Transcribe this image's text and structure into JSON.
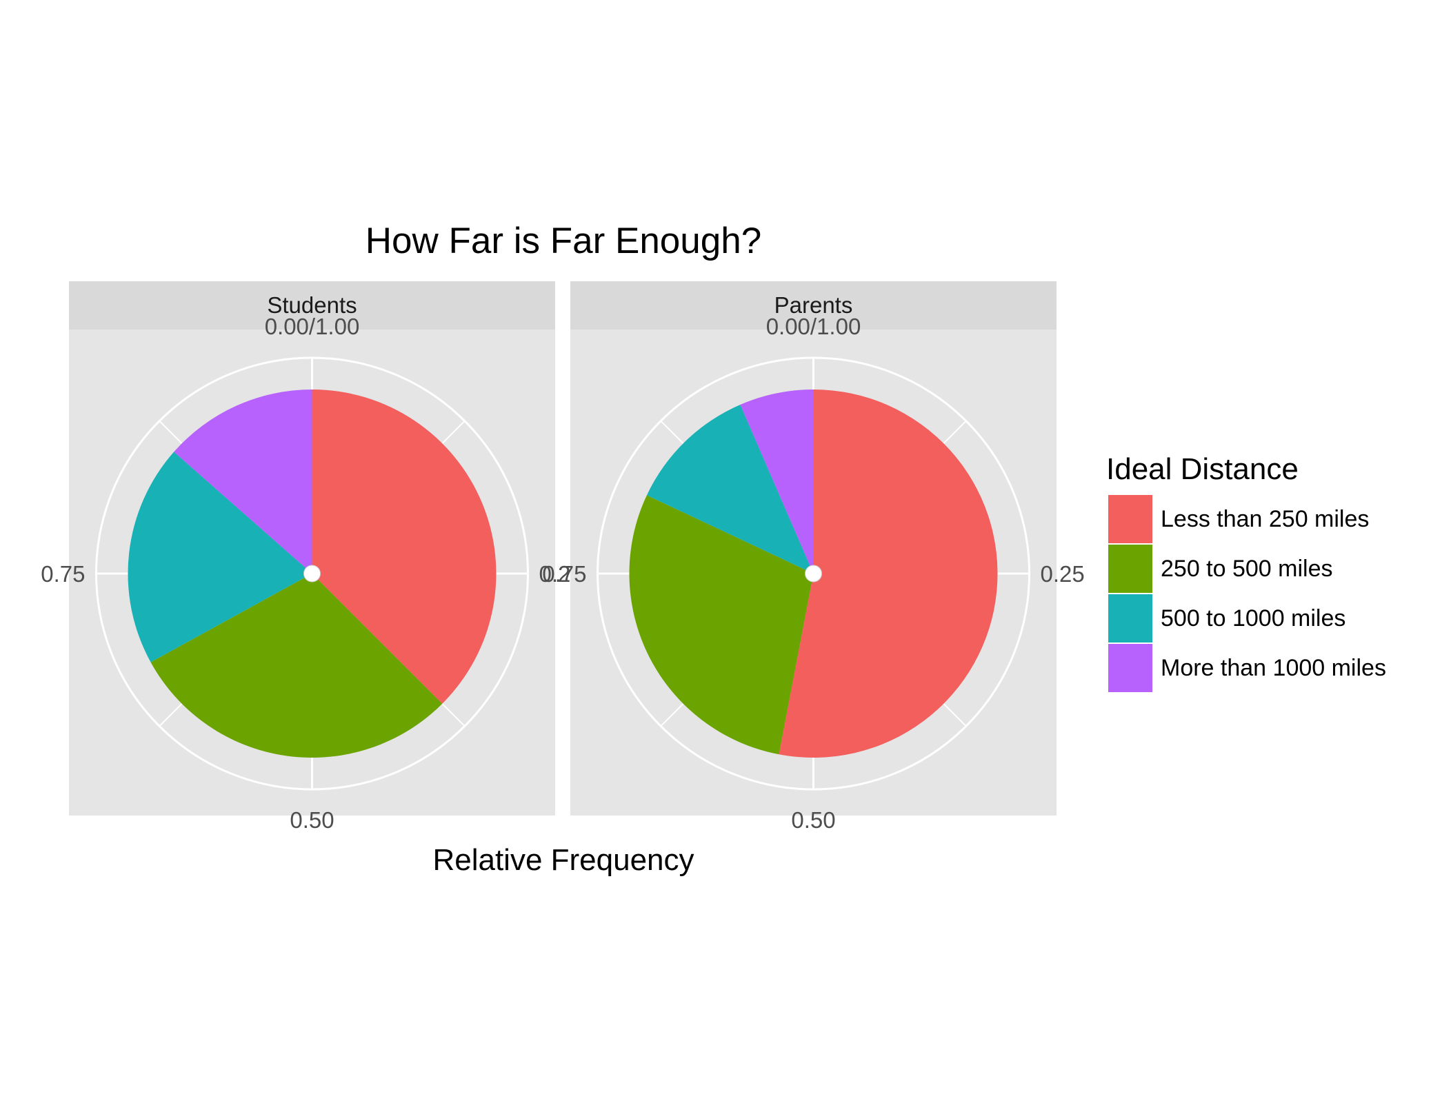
{
  "chart_data": {
    "type": "pie",
    "title": "How Far is Far Enough?",
    "xlabel": "Relative Frequency",
    "ylabel": "",
    "axis_ticks": [
      "0.00/1.00",
      "0.25",
      "0.50",
      "0.75"
    ],
    "categories": [
      "Less than 250 miles",
      "250 to 500 miles",
      "500 to 1000 miles",
      "More than 1000 miles"
    ],
    "legend": {
      "title": "Ideal Distance",
      "position": "right",
      "items": [
        {
          "label": "Less than 250 miles",
          "color": "#F25F5C"
        },
        {
          "label": "250 to 500 miles",
          "color": "#6BA300"
        },
        {
          "label": "500 to 1000 miles",
          "color": "#18B1B5"
        },
        {
          "label": "More than 1000 miles",
          "color": "#B762FD"
        }
      ]
    },
    "grid": true,
    "panels": [
      {
        "name": "Students",
        "values": [
          0.375,
          0.295,
          0.195,
          0.135
        ]
      },
      {
        "name": "Parents",
        "values": [
          0.53,
          0.29,
          0.115,
          0.065
        ]
      }
    ]
  }
}
